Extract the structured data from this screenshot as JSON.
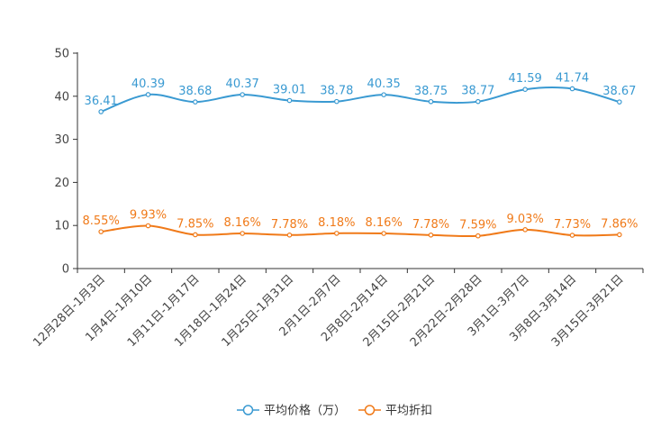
{
  "chart_data": {
    "type": "line",
    "title": "",
    "xlabel": "",
    "ylabel": "",
    "ylim": [
      0,
      50
    ],
    "yticks": [
      0,
      10,
      20,
      30,
      40,
      50
    ],
    "grid": false,
    "legend_position": "bottom-center",
    "categories": [
      "12月28日-1月3日",
      "1月4日-1月10日",
      "1月11日-1月17日",
      "1月18日-1月24日",
      "1月25日-1月31日",
      "2月1日-2月7日",
      "2月8日-2月14日",
      "2月15日-2月21日",
      "2月22日-2月28日",
      "3月1日-3月7日",
      "3月8日-3月14日",
      "3月15日-3月21日"
    ],
    "series": [
      {
        "name": "平均价格（万）",
        "color": "#3a9ad2",
        "values": [
          36.41,
          40.39,
          38.68,
          40.37,
          39.01,
          38.78,
          40.35,
          38.75,
          38.77,
          41.59,
          41.74,
          38.67
        ],
        "labels": [
          "36.41",
          "40.39",
          "38.68",
          "40.37",
          "39.01",
          "38.78",
          "40.35",
          "38.75",
          "38.77",
          "41.59",
          "41.74",
          "38.67"
        ]
      },
      {
        "name": "平均折扣",
        "color": "#f07a19",
        "values": [
          8.55,
          9.93,
          7.85,
          8.16,
          7.78,
          8.18,
          8.16,
          7.78,
          7.59,
          9.03,
          7.73,
          7.86
        ],
        "labels": [
          "8.55%",
          "9.93%",
          "7.85%",
          "8.16%",
          "7.78%",
          "8.18%",
          "8.16%",
          "7.78%",
          "7.59%",
          "9.03%",
          "7.73%",
          "7.86%"
        ]
      }
    ]
  }
}
